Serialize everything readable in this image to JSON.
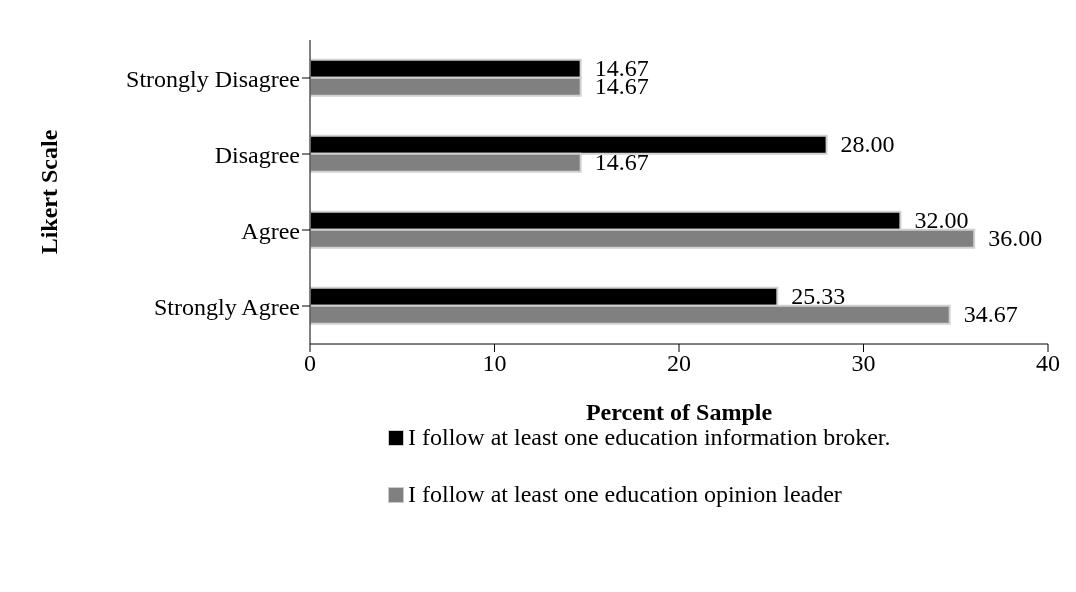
{
  "chart_data": {
    "type": "bar",
    "orientation": "horizontal",
    "xlabel": "Percent of Sample",
    "ylabel": "Likert Scale",
    "categories": [
      "Strongly Disagree",
      "Disagree",
      "Agree",
      "Strongly Agree"
    ],
    "series": [
      {
        "name": "I follow at least one education information broker.",
        "color": "#000000",
        "values": [
          14.67,
          28.0,
          32.0,
          25.33
        ],
        "value_labels": [
          "14.67",
          "28.00",
          "32.00",
          "25.33"
        ]
      },
      {
        "name": "I follow at least one education opinion leader",
        "color": "#808080",
        "values": [
          14.67,
          14.67,
          36.0,
          34.67
        ],
        "value_labels": [
          "14.67",
          "14.67",
          "36.00",
          "34.67"
        ]
      }
    ],
    "xlim": [
      0,
      40
    ],
    "xticks": [
      0,
      10,
      20,
      30,
      40
    ],
    "grid": false,
    "legend": "bottom"
  }
}
